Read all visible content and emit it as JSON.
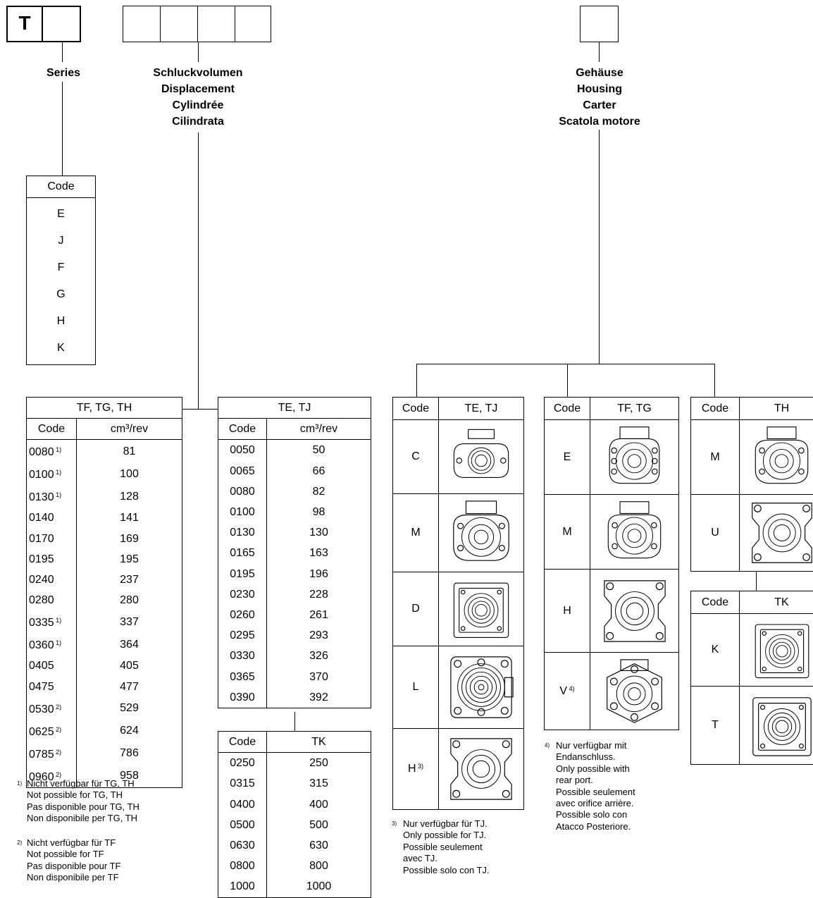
{
  "order_code": {
    "first_letter": "T"
  },
  "headings": {
    "series": "Series",
    "displacement": [
      "Schluckvolumen",
      "Displacement",
      "Cylindrée",
      "Cilindrata"
    ],
    "housing": [
      "Gehäuse",
      "Housing",
      "Carter",
      "Scatola motore"
    ]
  },
  "series_table": {
    "header": "Code",
    "codes": [
      "E",
      "J",
      "F",
      "G",
      "H",
      "K"
    ]
  },
  "disp_tf_tg_th": {
    "title": "TF, TG, TH",
    "col_code": "Code",
    "col_unit": "cm³/rev",
    "rows": [
      {
        "code": "0080",
        "note": "1)",
        "value": "81"
      },
      {
        "code": "0100",
        "note": "1)",
        "value": "100"
      },
      {
        "code": "0130",
        "note": "1)",
        "value": "128"
      },
      {
        "code": "0140",
        "note": "",
        "value": "141"
      },
      {
        "code": "0170",
        "note": "",
        "value": "169"
      },
      {
        "code": "0195",
        "note": "",
        "value": "195"
      },
      {
        "code": "0240",
        "note": "",
        "value": "237"
      },
      {
        "code": "0280",
        "note": "",
        "value": "280"
      },
      {
        "code": "0335",
        "note": "1)",
        "value": "337"
      },
      {
        "code": "0360",
        "note": "1)",
        "value": "364"
      },
      {
        "code": "0405",
        "note": "",
        "value": "405"
      },
      {
        "code": "0475",
        "note": "",
        "value": "477"
      },
      {
        "code": "0530",
        "note": "2)",
        "value": "529"
      },
      {
        "code": "0625",
        "note": "2)",
        "value": "624"
      },
      {
        "code": "0785",
        "note": "2)",
        "value": "786"
      },
      {
        "code": "0960",
        "note": "2)",
        "value": "958"
      }
    ]
  },
  "disp_te_tj": {
    "title": "TE, TJ",
    "col_code": "Code",
    "col_unit": "cm³/rev",
    "rows": [
      {
        "code": "0050",
        "value": "50"
      },
      {
        "code": "0065",
        "value": "66"
      },
      {
        "code": "0080",
        "value": "82"
      },
      {
        "code": "0100",
        "value": "98"
      },
      {
        "code": "0130",
        "value": "130"
      },
      {
        "code": "0165",
        "value": "163"
      },
      {
        "code": "0195",
        "value": "196"
      },
      {
        "code": "0230",
        "value": "228"
      },
      {
        "code": "0260",
        "value": "261"
      },
      {
        "code": "0295",
        "value": "293"
      },
      {
        "code": "0330",
        "value": "326"
      },
      {
        "code": "0365",
        "value": "370"
      },
      {
        "code": "0390",
        "value": "392"
      }
    ]
  },
  "disp_tk": {
    "col_code": "Code",
    "col_unit": "TK",
    "rows": [
      {
        "code": "0250",
        "value": "250"
      },
      {
        "code": "0315",
        "value": "315"
      },
      {
        "code": "0400",
        "value": "400"
      },
      {
        "code": "0500",
        "value": "500"
      },
      {
        "code": "0630",
        "value": "630"
      },
      {
        "code": "0800",
        "value": "800"
      },
      {
        "code": "1000",
        "value": "1000"
      }
    ]
  },
  "notes": {
    "n1": {
      "mark": "1)",
      "lines": [
        "Nicht verfügbar für TG, TH",
        "Not possible for TG, TH",
        "Pas disponible pour TG, TH",
        "Non disponibile per TG, TH"
      ]
    },
    "n2": {
      "mark": "2)",
      "lines": [
        "Nicht verfügbar für TF",
        "Not possible for TF",
        "Pas disponible pour TF",
        "Non disponibile per TF"
      ]
    },
    "n3": {
      "mark": "3)",
      "lines": [
        "Nur verfügbar für TJ.",
        "Only possible for TJ.",
        "Possible seulement",
        "avec TJ.",
        "Possible solo con TJ."
      ]
    },
    "n4": {
      "mark": "4)",
      "lines": [
        "Nur verfügbar mit",
        "Endanschluss.",
        "Only possible with",
        "rear port.",
        "Possible seulement",
        "avec orifice arrière.",
        "Possible solo con",
        "Atacco Posteriore."
      ]
    }
  },
  "housing_te_tj": {
    "col_code": "Code",
    "col_title": "TE, TJ",
    "rows": [
      {
        "code": "C",
        "note": "",
        "icon": "two-bolt-flange-icon"
      },
      {
        "code": "M",
        "note": "",
        "icon": "magneto-flange-icon"
      },
      {
        "code": "D",
        "note": "",
        "icon": "square-flange-icon"
      },
      {
        "code": "L",
        "note": "",
        "icon": "wheel-mount-icon"
      },
      {
        "code": "H",
        "note": "3)",
        "icon": "four-bolt-square-icon"
      }
    ]
  },
  "housing_tf_tg": {
    "col_code": "Code",
    "col_title": "TF, TG",
    "rows": [
      {
        "code": "E",
        "note": "",
        "icon": "six-bolt-flange-icon"
      },
      {
        "code": "M",
        "note": "",
        "icon": "magneto-flange-icon"
      },
      {
        "code": "H",
        "note": "",
        "icon": "four-bolt-square-icon"
      },
      {
        "code": "V",
        "note": "4)",
        "icon": "wheel-flange-icon"
      }
    ]
  },
  "housing_th": {
    "col_code": "Code",
    "col_title": "TH",
    "rows": [
      {
        "code": "M",
        "icon": "magneto-flange-icon"
      },
      {
        "code": "U",
        "icon": "four-bolt-square-icon"
      }
    ]
  },
  "housing_tk": {
    "col_code": "Code",
    "col_title": "TK",
    "rows": [
      {
        "code": "K",
        "icon": "square-flange-icon"
      },
      {
        "code": "T",
        "icon": "square-flange-icon"
      }
    ]
  }
}
